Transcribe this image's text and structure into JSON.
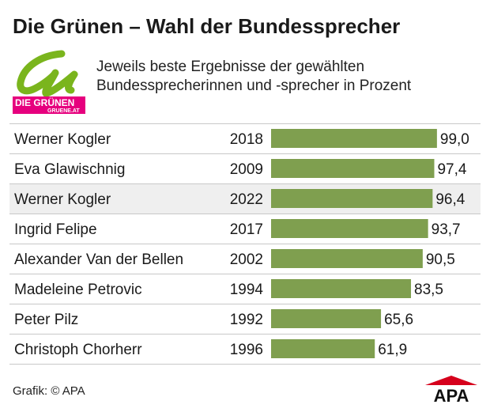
{
  "header": {
    "title": "Die Grünen – Wahl der Bundessprecher",
    "subtitle_line1": "Jeweils beste Ergebnisse der gewählten",
    "subtitle_line2": "Bundessprecherinnen und -sprecher in Prozent"
  },
  "logo": {
    "text": "DIE GRÜNEN",
    "url_text": "GRUENE.AT",
    "green": "#7ab51d",
    "pink": "#e6007e"
  },
  "footer": {
    "source": "Grafik: © APA",
    "brand": "APA"
  },
  "colors": {
    "bar": "#7f9f4f",
    "highlight_row": "#efefef",
    "divider": "#c8c8c8",
    "text": "#1a1a1a"
  },
  "chart_data": {
    "type": "bar",
    "orientation": "horizontal",
    "categories": [
      "Werner Kogler",
      "Eva Glawischnig",
      "Werner Kogler",
      "Ingrid Felipe",
      "Alexander Van der Bellen",
      "Madeleine Petrovic",
      "Peter Pilz",
      "Christoph Chorherr"
    ],
    "years": [
      "2018",
      "2009",
      "2022",
      "2017",
      "2002",
      "1994",
      "1992",
      "1996"
    ],
    "values": [
      99.0,
      97.4,
      96.4,
      93.7,
      90.5,
      83.5,
      65.6,
      61.9
    ],
    "value_labels": [
      "99,0",
      "97,4",
      "96,4",
      "93,7",
      "90,5",
      "83,5",
      "65,6",
      "61,9"
    ],
    "highlighted_index": 2,
    "xlim": [
      0,
      100
    ],
    "grid": false,
    "legend": "none"
  }
}
